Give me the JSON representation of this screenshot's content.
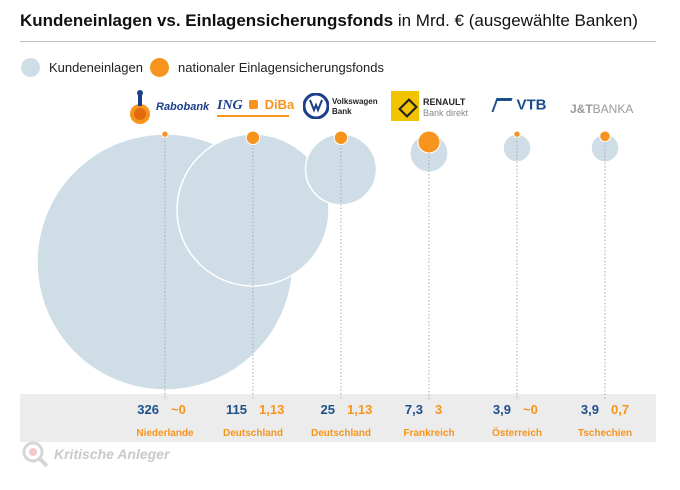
{
  "header": {
    "title_bold": "Kundeneinlagen vs. Einlagensicherungsfonds",
    "title_rest": " in Mrd. € (ausgewählte Banken)"
  },
  "legend": {
    "deposits_label": "Kundeneinlagen",
    "fund_label": "nationaler Einlagensicherungsfonds"
  },
  "colors": {
    "deposits": "#cfdde6",
    "fund": "#f7941d",
    "deposits_value_text": "#1b4f8a",
    "fund_value_text": "#f7941d",
    "band": "#ececec"
  },
  "logos": {
    "rabobank": "Rabobank",
    "ing_a": "ING",
    "ing_b": "DiBa",
    "vw_a": "Volkswagen",
    "vw_b": "Bank",
    "renault_a": "RENAULT",
    "renault_b": "Bank direkt",
    "vtb": "VTB",
    "jt_a": "J&T",
    "jt_b": "BANKA"
  },
  "watermark": "Kritische Anleger",
  "chart_data": {
    "type": "bubble",
    "title": "Kundeneinlagen vs. Einlagensicherungsfonds in Mrd. € (ausgewählte Banken)",
    "unit": "Mrd. €",
    "series_names": [
      "Kundeneinlagen",
      "nationaler Einlagensicherungsfonds"
    ],
    "banks": [
      {
        "bank": "Rabobank",
        "country": "Niederlande",
        "deposits": 326,
        "deposits_label": "326",
        "fund": 0.05,
        "fund_label": "~0"
      },
      {
        "bank": "ING DiBa",
        "country": "Deutschland",
        "deposits": 115,
        "deposits_label": "115",
        "fund": 1.13,
        "fund_label": "1,13"
      },
      {
        "bank": "Volkswagen Bank",
        "country": "Deutschland",
        "deposits": 25,
        "deposits_label": "25",
        "fund": 1.13,
        "fund_label": "1,13"
      },
      {
        "bank": "Renault Bank direkt",
        "country": "Frankreich",
        "deposits": 7.3,
        "deposits_label": "7,3",
        "fund": 3,
        "fund_label": "3"
      },
      {
        "bank": "VTB",
        "country": "Österreich",
        "deposits": 3.9,
        "deposits_label": "3,9",
        "fund": 0.05,
        "fund_label": "~0"
      },
      {
        "bank": "J&T Banka",
        "country": "Tschechien",
        "deposits": 3.9,
        "deposits_label": "3,9",
        "fund": 0.7,
        "fund_label": "0,7"
      }
    ]
  }
}
